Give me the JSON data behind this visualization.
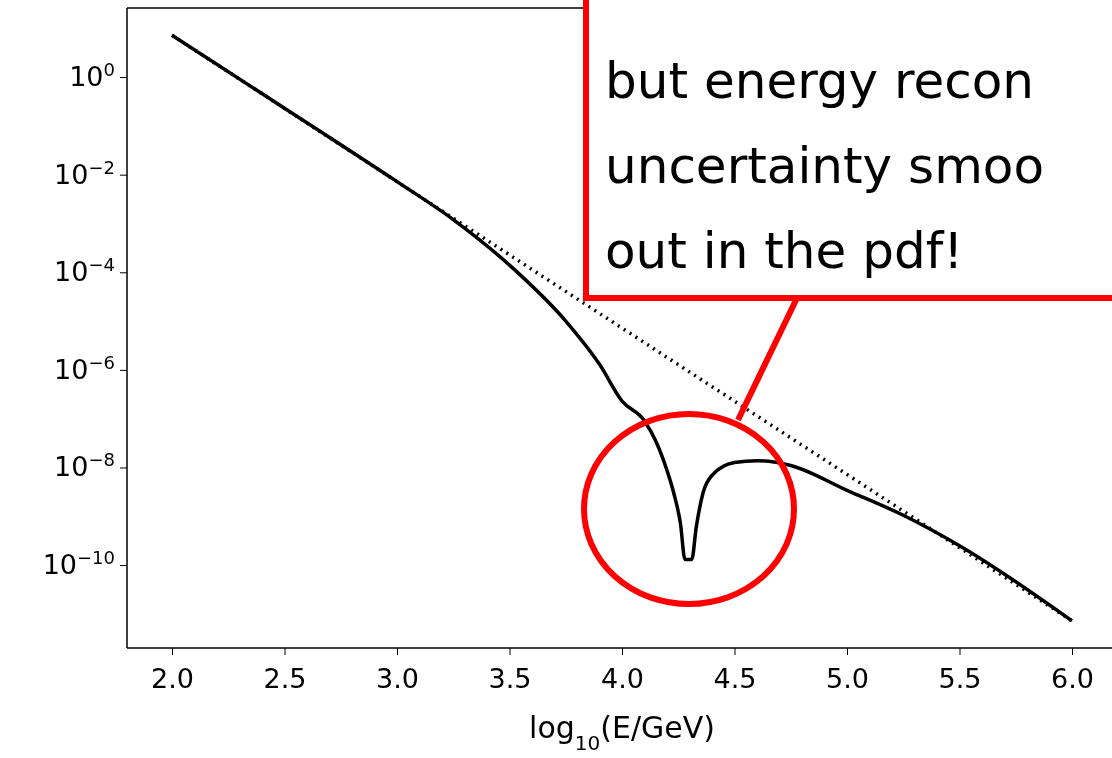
{
  "chart_data": {
    "type": "line",
    "xlabel": "log$_{10}$(E/GeV)",
    "log": "y",
    "grid": false,
    "marker": "none",
    "xlim": [
      1.8,
      6.2
    ],
    "xticks": [
      {
        "value": 2,
        "label": "2.0"
      },
      {
        "value": 2.5,
        "label": "2.5"
      },
      {
        "value": 3,
        "label": "3.0"
      },
      {
        "value": 3.5,
        "label": "3.5"
      },
      {
        "value": 4,
        "label": "4.0"
      },
      {
        "value": 4.5,
        "label": "4.5"
      },
      {
        "value": 5,
        "label": "5.0"
      },
      {
        "value": 5.5,
        "label": "5.5"
      },
      {
        "value": 6,
        "label": "6.0"
      }
    ],
    "ylim": [
      2e-12,
      26
    ],
    "yticks": [
      {
        "value": 1,
        "label": "10$^{0}$"
      },
      {
        "value": 0.01,
        "label": "10$^{−2}$"
      },
      {
        "value": 0.0001,
        "label": "10$^{−4}$"
      },
      {
        "value": 1e-06,
        "label": "10$^{−6}$"
      },
      {
        "value": 1e-08,
        "label": "10$^{−8}$"
      },
      {
        "value": 1e-10,
        "label": "10$^{−10}$"
      }
    ],
    "series": [
      {
        "color": "#000000",
        "line_style": "solid",
        "x": [
          2.0,
          2.5,
          3.0,
          3.25,
          3.5,
          3.75,
          3.9,
          4.0,
          4.1,
          4.15,
          4.2,
          4.23,
          4.26,
          4.28,
          4.31,
          4.33,
          4.36,
          4.4,
          4.5,
          4.6,
          4.75,
          5.0,
          5.25,
          5.5,
          6.0
        ],
        "values": [
          7.2,
          0.23,
          0.0072,
          0.0012,
          0.00014,
          1e-05,
          1.3e-06,
          2.3e-07,
          9e-08,
          3.5e-08,
          8.7e-09,
          3e-09,
          7e-10,
          1.3e-10,
          1.3e-10,
          6e-10,
          3e-09,
          6.9e-09,
          1.26e-08,
          1.38e-08,
          1.1e-08,
          3.4e-09,
          1.05e-09,
          2.5e-10,
          7.2e-12
        ]
      },
      {
        "color": "#000000",
        "line_style": "dotted",
        "x": [
          2.0,
          6.0
        ],
        "values": [
          7.2,
          7.2e-12
        ]
      }
    ],
    "annotations": [
      "but energy recon\nuncertainty smoo\nout in the pdf!"
    ]
  }
}
